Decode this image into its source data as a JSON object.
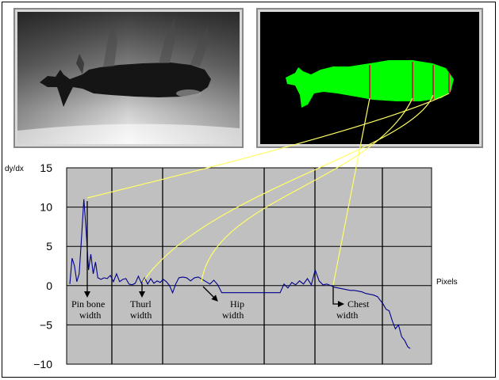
{
  "chart_data": {
    "type": "line",
    "ylabel": "dy/dx",
    "xlabel": "Pixels",
    "ylim": [
      -10,
      15
    ],
    "yticks": [
      "15",
      "10",
      "5",
      "0",
      "−5",
      "−10"
    ],
    "yticks_values": [
      15,
      10,
      5,
      0,
      -5,
      -10
    ],
    "xlim": [
      0,
      440
    ],
    "grid": true,
    "x": [
      0,
      3,
      6,
      9,
      12,
      15,
      18,
      21,
      24,
      27,
      30,
      33,
      36,
      40,
      44,
      48,
      52,
      56,
      60,
      64,
      68,
      72,
      76,
      80,
      84,
      88,
      92,
      96,
      100,
      104,
      108,
      112,
      116,
      120,
      124,
      128,
      132,
      136,
      140,
      145,
      150,
      155,
      160,
      165,
      170,
      175,
      180,
      185,
      190,
      195,
      200,
      205,
      210,
      215,
      220,
      225,
      230,
      235,
      240,
      245,
      250,
      255,
      260,
      265,
      270,
      275,
      280,
      285,
      290,
      295,
      300,
      305,
      310,
      315,
      320,
      325,
      330,
      335,
      340,
      345,
      350,
      355,
      360,
      365,
      370,
      375,
      380,
      385,
      390,
      395,
      398,
      402,
      406,
      410,
      414,
      418,
      422,
      426,
      430,
      434,
      437
    ],
    "values": [
      0.2,
      3.5,
      2.5,
      0.5,
      1.5,
      6,
      11,
      7,
      2,
      4,
      1.5,
      3,
      1,
      0.8,
      1,
      0.9,
      1.3,
      0.5,
      1.5,
      0.5,
      0.8,
      0.9,
      0.2,
      0.1,
      0.3,
      1.2,
      0.3,
      1,
      0.2,
      0.9,
      0.3,
      0.6,
      0.4,
      0.8,
      0.5,
      0,
      -0.9,
      0.2,
      1,
      1.1,
      1,
      0.6,
      1,
      1.1,
      0.8,
      0.5,
      0.2,
      0.7,
      0.1,
      -0.9,
      -0.9,
      -0.9,
      -0.9,
      -0.9,
      -0.9,
      -0.9,
      -0.9,
      -0.9,
      -0.9,
      -0.9,
      -0.9,
      -0.9,
      -0.9,
      -0.9,
      -0.9,
      0.2,
      -0.3,
      0.4,
      0.1,
      0.6,
      0.2,
      0.9,
      0.1,
      2,
      0.6,
      0.1,
      0.2,
      0,
      -0.2,
      -0.3,
      -0.4,
      -0.5,
      -0.6,
      -0.6,
      -0.7,
      -0.8,
      -1,
      -1.1,
      -1.2,
      -1.4,
      -1.8,
      -2.3,
      -3,
      -3.2,
      -4.5,
      -5.5,
      -5,
      -6.5,
      -7,
      -7.8,
      -8
    ]
  },
  "annotations": [
    {
      "name": "pin-bone-width",
      "lines": [
        "Pin bone",
        "width"
      ]
    },
    {
      "name": "thurl-width",
      "lines": [
        "Thurl",
        "width"
      ]
    },
    {
      "name": "hip-width",
      "lines": [
        "Hip",
        "width"
      ]
    },
    {
      "name": "chest-width",
      "lines": [
        "Chest",
        "width"
      ]
    }
  ],
  "colors": {
    "plot_background": "#c0c0c0",
    "series": "#00008b",
    "connector": "#ffff66",
    "mask": "#00ff00",
    "mask_background": "#000000",
    "measure_line": "#b83030"
  }
}
